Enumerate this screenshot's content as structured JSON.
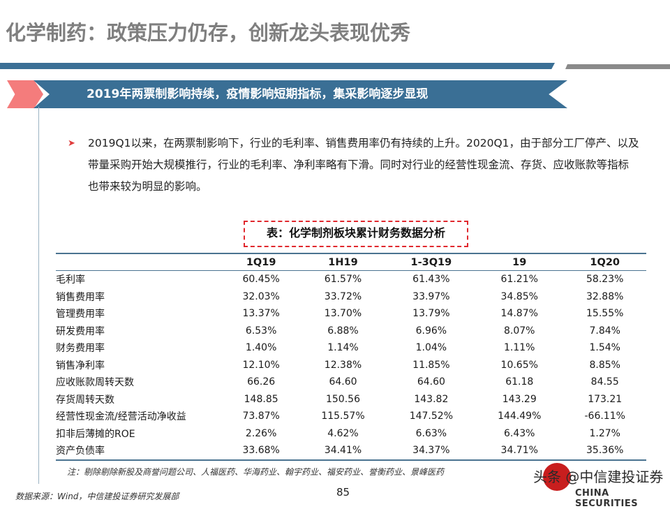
{
  "header": {
    "title": "化学制药：政策压力仍存，创新龙头表现优秀"
  },
  "ribbon": {
    "text": "2019年两票制影响持续，疫情影响短期指标，集采影响逐步显现",
    "colors": {
      "pink": "#f47c7c",
      "blue": "#3a6f95"
    }
  },
  "body": {
    "bullet_icon": "arrow-bullet-icon",
    "paragraph": "2019Q1以来，在两票制影响下，行业的毛利率、销售费用率仍有持续的上升。2020Q1，由于部分工厂停产、以及带量采购开始大规模推行，行业的毛利率、净利率略有下滑。同时对行业的经营性现金流、存货、应收账款等指标也带来较为明显的影响。"
  },
  "table": {
    "caption": "表：化学制剂板块累计财务数据分析",
    "columns": [
      "",
      "1Q19",
      "1H19",
      "1-3Q19",
      "19",
      "1Q20"
    ],
    "rows": [
      {
        "label": "毛利率",
        "values": [
          "60.45%",
          "61.57%",
          "61.43%",
          "61.21%",
          "58.23%"
        ]
      },
      {
        "label": "销售费用率",
        "values": [
          "32.03%",
          "33.72%",
          "33.97%",
          "34.85%",
          "32.88%"
        ]
      },
      {
        "label": "管理费用率",
        "values": [
          "13.37%",
          "13.70%",
          "13.79%",
          "14.87%",
          "15.55%"
        ]
      },
      {
        "label": "研发费用率",
        "values": [
          "6.53%",
          "6.88%",
          "6.96%",
          "8.07%",
          "7.84%"
        ]
      },
      {
        "label": "财务费用率",
        "values": [
          "1.40%",
          "1.14%",
          "1.04%",
          "1.11%",
          "1.54%"
        ]
      },
      {
        "label": "销售净利率",
        "values": [
          "12.10%",
          "12.38%",
          "11.85%",
          "10.65%",
          "8.85%"
        ]
      },
      {
        "label": "应收账款周转天数",
        "values": [
          "66.26",
          "64.60",
          "64.60",
          "61.18",
          "84.55"
        ]
      },
      {
        "label": "存货周转天数",
        "values": [
          "148.85",
          "150.56",
          "143.82",
          "143.29",
          "173.21"
        ]
      },
      {
        "label": "经营性现金流/经营活动净收益",
        "values": [
          "73.87%",
          "115.57%",
          "147.52%",
          "144.49%",
          "-66.11%"
        ]
      },
      {
        "label": "扣非后薄摊的ROE",
        "values": [
          "2.26%",
          "4.62%",
          "6.63%",
          "6.43%",
          "1.27%"
        ]
      },
      {
        "label": "资产负债率",
        "values": [
          "33.68%",
          "34.41%",
          "34.37%",
          "34.71%",
          "35.36%"
        ]
      }
    ],
    "note": "注：剔除剔除新股及商誉问题公司、人福医药、华海药业、翰宇药业、福安药业、誉衡药业、景峰医药"
  },
  "footer": {
    "source": "数据来源：Wind，中信建投证券研究发展部",
    "page_number": "85",
    "watermark": "头条 @中信建投证券",
    "logo_en": "CHINA SECURITIES"
  }
}
